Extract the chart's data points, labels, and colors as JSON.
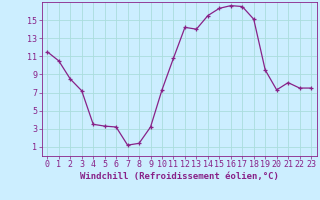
{
  "x": [
    0,
    1,
    2,
    3,
    4,
    5,
    6,
    7,
    8,
    9,
    10,
    11,
    12,
    13,
    14,
    15,
    16,
    17,
    18,
    19,
    20,
    21,
    22,
    23
  ],
  "y": [
    11.5,
    10.5,
    8.5,
    7.2,
    3.5,
    3.3,
    3.2,
    1.2,
    1.4,
    3.2,
    7.3,
    10.8,
    14.2,
    14.0,
    15.5,
    16.3,
    16.6,
    16.5,
    15.1,
    9.5,
    7.3,
    8.1,
    7.5,
    7.5
  ],
  "line_color": "#882288",
  "marker": "+",
  "bg_color": "#cceeff",
  "grid_color": "#aadddd",
  "xlabel": "Windchill (Refroidissement éolien,°C)",
  "ylabel_ticks": [
    1,
    3,
    5,
    7,
    9,
    11,
    13,
    15
  ],
  "xlim": [
    -0.5,
    23.5
  ],
  "ylim": [
    0,
    17
  ],
  "xticks": [
    0,
    1,
    2,
    3,
    4,
    5,
    6,
    7,
    8,
    9,
    10,
    11,
    12,
    13,
    14,
    15,
    16,
    17,
    18,
    19,
    20,
    21,
    22,
    23
  ],
  "font_color": "#882288",
  "spine_color": "#882288",
  "font_size": 6,
  "xlabel_fontsize": 6.5
}
